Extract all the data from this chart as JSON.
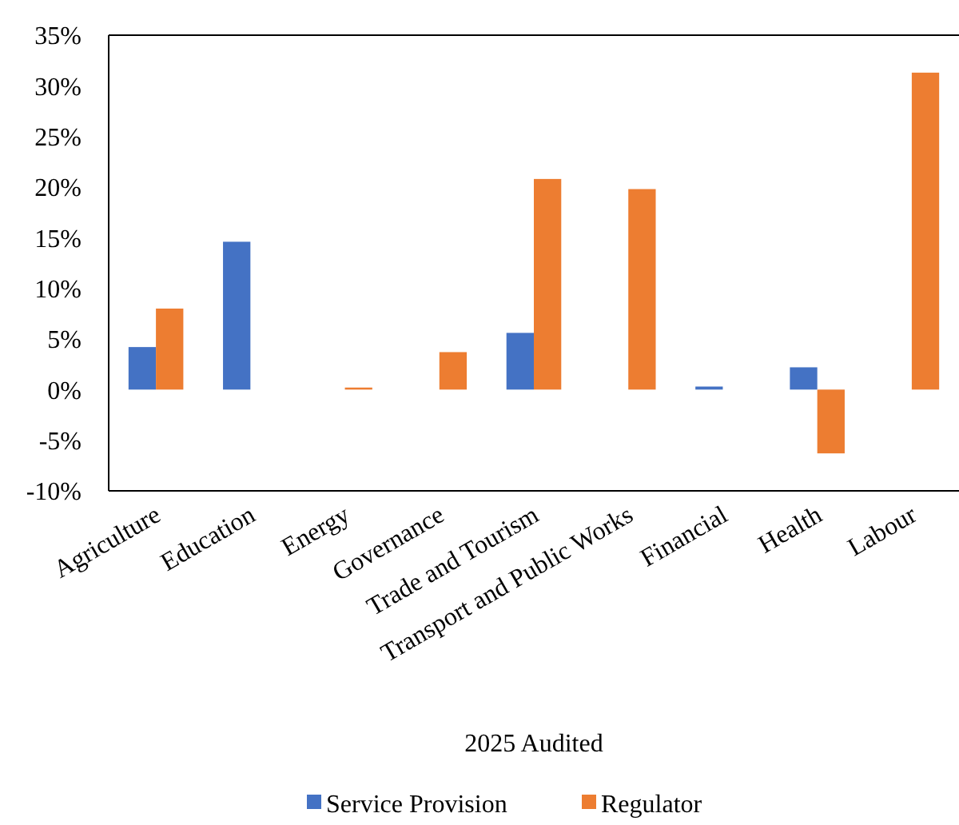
{
  "chart_data": {
    "type": "bar",
    "xlabel": "2025 Audited",
    "categories": [
      "Agriculture",
      "Education",
      "Energy",
      "Governance",
      "Trade and Tourism",
      "Transport and Public Works",
      "Financial",
      "Health",
      "Labour"
    ],
    "series": [
      {
        "name": "Service Provision",
        "color": "#4472c4",
        "values": [
          4.2,
          14.6,
          null,
          null,
          5.6,
          null,
          0.3,
          2.2,
          null
        ]
      },
      {
        "name": "Regulator",
        "color": "#ed7d31",
        "values": [
          8.0,
          null,
          0.2,
          3.7,
          20.8,
          19.8,
          null,
          -6.3,
          31.3
        ]
      }
    ],
    "ylim": [
      -10,
      35
    ],
    "yticks": [
      {
        "value": -10,
        "label": "-10%"
      },
      {
        "value": -5,
        "label": "-5%"
      },
      {
        "value": 0,
        "label": "0%"
      },
      {
        "value": 5,
        "label": "5%"
      },
      {
        "value": 10,
        "label": "10%"
      },
      {
        "value": 15,
        "label": "15%"
      },
      {
        "value": 20,
        "label": "20%"
      },
      {
        "value": 25,
        "label": "25%"
      },
      {
        "value": 30,
        "label": "30%"
      },
      {
        "value": 35,
        "label": "35%"
      }
    ],
    "grid": false,
    "legend": "bottom"
  }
}
